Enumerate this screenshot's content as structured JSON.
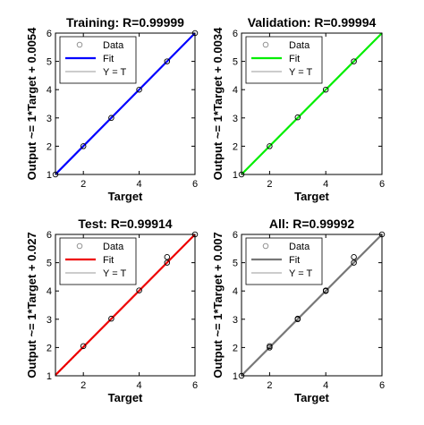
{
  "chart_data": [
    {
      "type": "scatter",
      "title": "Training: R=0.99999",
      "xlabel": "Target",
      "ylabel": "Output ~= 1*Target + 0.0054",
      "xlim": [
        1,
        6
      ],
      "ylim": [
        1,
        6
      ],
      "xticks": [
        2,
        4,
        6
      ],
      "yticks": [
        1,
        2,
        3,
        4,
        5,
        6
      ],
      "fit_color": "#0000ff",
      "legend": {
        "data": "Data",
        "fit": "Fit",
        "yt": "Y = T",
        "position": "top-left"
      },
      "points": [
        [
          1,
          1
        ],
        [
          2,
          2
        ],
        [
          3,
          3
        ],
        [
          4,
          4
        ],
        [
          5,
          5
        ],
        [
          6,
          6
        ]
      ],
      "fit_line": [
        [
          1,
          1.0054
        ],
        [
          6,
          6.0054
        ]
      ]
    },
    {
      "type": "scatter",
      "title": "Validation: R=0.99994",
      "xlabel": "Target",
      "ylabel": "Output ~= 1*Target + 0.0034",
      "xlim": [
        1,
        6
      ],
      "ylim": [
        1,
        6
      ],
      "xticks": [
        2,
        4,
        6
      ],
      "yticks": [
        1,
        2,
        3,
        4,
        5,
        6
      ],
      "fit_color": "#00ee00",
      "legend": {
        "data": "Data",
        "fit": "Fit",
        "yt": "Y = T",
        "position": "top-left"
      },
      "points": [
        [
          1,
          1
        ],
        [
          2,
          2
        ],
        [
          3,
          3.02
        ],
        [
          4,
          4
        ],
        [
          5,
          5
        ]
      ],
      "fit_line": [
        [
          1,
          1.0034
        ],
        [
          6,
          6.0034
        ]
      ]
    },
    {
      "type": "scatter",
      "title": "Test: R=0.99914",
      "xlabel": "Target",
      "ylabel": "Output ~= 1*Target + 0.027",
      "xlim": [
        1,
        6
      ],
      "ylim": [
        1,
        6
      ],
      "xticks": [
        2,
        4,
        6
      ],
      "yticks": [
        1,
        2,
        3,
        4,
        5,
        6
      ],
      "fit_color": "#ee0000",
      "legend": {
        "data": "Data",
        "fit": "Fit",
        "yt": "Y = T",
        "position": "top-left"
      },
      "points": [
        [
          2,
          2.05
        ],
        [
          3,
          3.02
        ],
        [
          4,
          4.02
        ],
        [
          5,
          5
        ],
        [
          5,
          5.2
        ],
        [
          6,
          6
        ]
      ],
      "fit_line": [
        [
          1,
          1.027
        ],
        [
          6,
          6.027
        ]
      ]
    },
    {
      "type": "scatter",
      "title": "All: R=0.99992",
      "xlabel": "Target",
      "ylabel": "Output ~= 1*Target + 0.007",
      "xlim": [
        1,
        6
      ],
      "ylim": [
        1,
        6
      ],
      "xticks": [
        2,
        4,
        6
      ],
      "yticks": [
        1,
        2,
        3,
        4,
        5,
        6
      ],
      "fit_color": "#777777",
      "legend": {
        "data": "Data",
        "fit": "Fit",
        "yt": "Y = T",
        "position": "top-left"
      },
      "points": [
        [
          1,
          1
        ],
        [
          2,
          2
        ],
        [
          2,
          2.05
        ],
        [
          3,
          3
        ],
        [
          3,
          3.02
        ],
        [
          4,
          4
        ],
        [
          4,
          4.02
        ],
        [
          5,
          5
        ],
        [
          5,
          5.2
        ],
        [
          6,
          6
        ]
      ],
      "fit_line": [
        [
          1,
          1.007
        ],
        [
          6,
          6.007
        ]
      ]
    }
  ]
}
